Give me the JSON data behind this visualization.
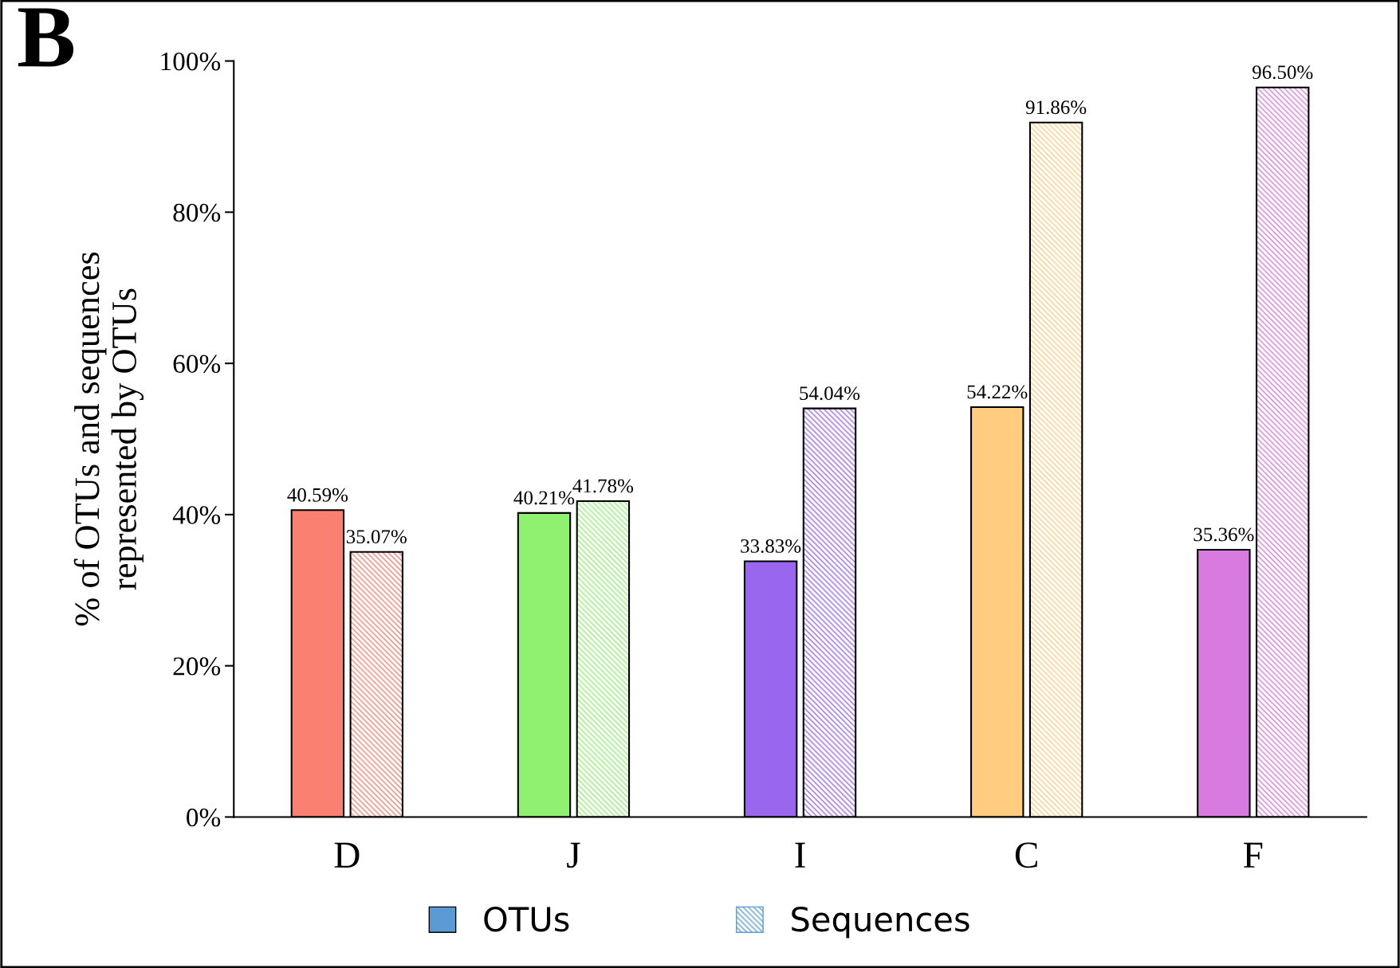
{
  "chart_data": {
    "type": "bar",
    "title": "B",
    "ylabel": "% of OTUs and sequences\nrepresented by OTUs",
    "categories": [
      "D",
      "J",
      "I",
      "C",
      "F"
    ],
    "series": [
      {
        "name": "OTUs",
        "color": "#5b9bd5",
        "colors": [
          "#fa8072",
          "#90f070",
          "#9966ee",
          "#ffcc80",
          "#d87ae0"
        ],
        "values": [
          40.59,
          40.21,
          33.83,
          54.22,
          35.36
        ],
        "value_labels": [
          "40.59%",
          "40.21%",
          "33.83%",
          "54.22%",
          "35.36%"
        ]
      },
      {
        "name": "Sequences",
        "color": "#5b9bd5",
        "colors": [
          "#fa8072",
          "#90f070",
          "#9966ee",
          "#ffcc80",
          "#d87ae0"
        ],
        "values": [
          35.07,
          41.78,
          54.04,
          91.86,
          96.5
        ],
        "value_labels": [
          "35.07%",
          "41.78%",
          "54.04%",
          "91.86%",
          "96.50%"
        ]
      }
    ],
    "ylim": [
      0,
      100
    ],
    "yticks": [
      {
        "value": 0,
        "label": "0%"
      },
      {
        "value": 20,
        "label": "20%"
      },
      {
        "value": 40,
        "label": "40%"
      },
      {
        "value": 60,
        "label": "60%"
      },
      {
        "value": 80,
        "label": "80%"
      },
      {
        "value": 100,
        "label": "100%"
      }
    ],
    "grid": false,
    "legend": "bottom"
  }
}
